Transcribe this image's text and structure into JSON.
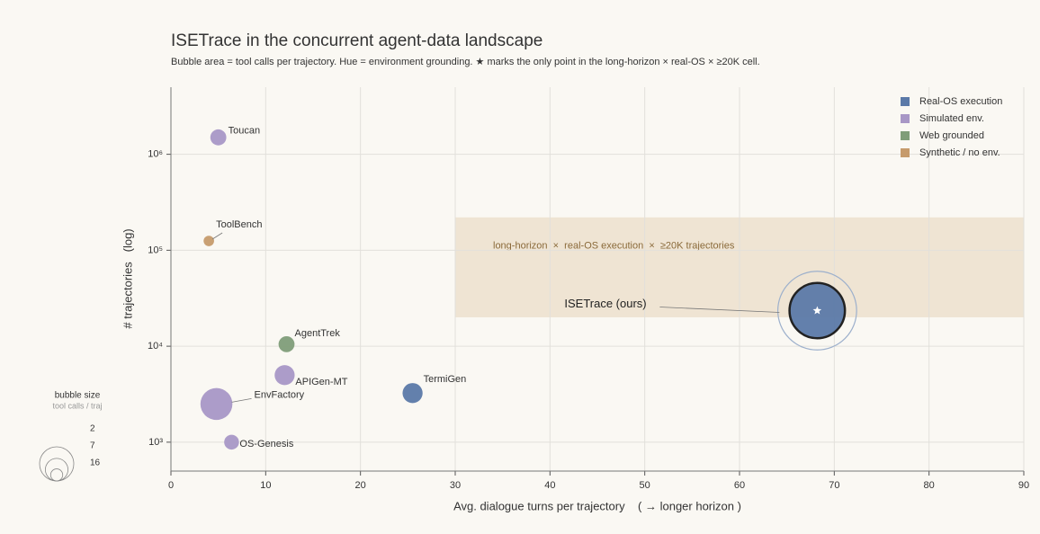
{
  "chart_data": {
    "type": "scatter",
    "title": "ISETrace in the concurrent agent-data landscape",
    "subtitle": "Bubble area = tool calls per trajectory.  Hue = environment grounding.  ★ marks the only point in the long-horizon × real-OS × ≥20K cell.",
    "x_label": "Avg. dialogue turns per trajectory    ( → longer horizon )",
    "y_label": "# trajectories   (log)",
    "xlim": [
      0,
      90
    ],
    "xticks": [
      0,
      10,
      20,
      30,
      40,
      50,
      60,
      70,
      80,
      90
    ],
    "ylim": [
      500,
      5000000
    ],
    "y_scale": "log",
    "yticks": [
      {
        "value": 1000,
        "label": "10³"
      },
      {
        "value": 10000,
        "label": "10⁴"
      },
      {
        "value": 100000,
        "label": "10⁵"
      },
      {
        "value": 1000000,
        "label": "10⁶"
      }
    ],
    "grid": true,
    "legend": "upper right",
    "region": {
      "x": [
        30,
        90
      ],
      "y": [
        20000,
        220000
      ],
      "label": "long-horizon  ×  real-OS execution  ×  ≥20K trajectories",
      "color": "#efe4d3"
    },
    "series": [
      {
        "name": "Real-OS execution",
        "color": "#5b79a8",
        "labels": [
          "TermiGen",
          "ISETrace (ours)"
        ],
        "x": [
          25.5,
          68.2
        ],
        "values": [
          3250,
          23500
        ],
        "sizes": [
          5.5,
          42
        ]
      },
      {
        "name": "Simulated env.",
        "color": "#a897c6",
        "labels": [
          "Toucan",
          "APIGen-MT",
          "EnvFactory",
          "OS-Genesis"
        ],
        "x": [
          5,
          12,
          4.8,
          6.4
        ],
        "values": [
          1500000,
          5000,
          2500,
          1000
        ],
        "sizes": [
          3.5,
          5.5,
          14,
          3
        ]
      },
      {
        "name": "Web grounded",
        "color": "#809d79",
        "labels": [
          "AgentTrek"
        ],
        "x": [
          12.2
        ],
        "values": [
          10500
        ],
        "sizes": [
          3.5
        ]
      },
      {
        "name": "Synthetic / no env.",
        "color": "#c69b6c",
        "labels": [
          "ToolBench"
        ],
        "x": [
          4
        ],
        "values": [
          125000
        ],
        "sizes": [
          1.5
        ]
      }
    ],
    "size_legend": {
      "title": "bubble size",
      "subtitle": "tool calls / traj",
      "values": [
        2,
        7,
        16
      ]
    }
  }
}
